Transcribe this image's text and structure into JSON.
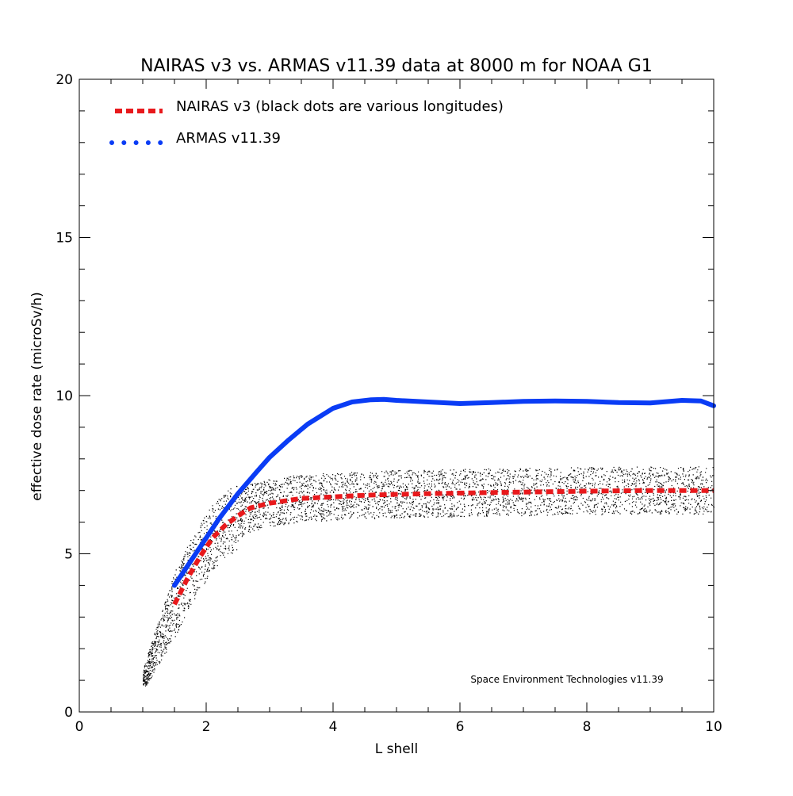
{
  "chart_data": {
    "type": "line",
    "title": "NAIRAS  v3 vs. ARMAS v11.39 data at 8000 m for NOAA G1",
    "xlabel": "L shell",
    "ylabel": "effective dose rate (microSv/h)",
    "xlim": [
      0,
      10
    ],
    "ylim": [
      0,
      20
    ],
    "x_ticks": [
      "0",
      "2",
      "4",
      "6",
      "8",
      "10"
    ],
    "y_ticks": [
      "0",
      "5",
      "10",
      "15",
      "20"
    ],
    "grid": false,
    "legend_position": "top-left",
    "legend": [
      "NAIRAS v3 (black dots are various longitudes)",
      "ARMAS v11.39"
    ],
    "annotation": "Space Environment Technologies v11.39",
    "colors": {
      "nairas": "#e8191c",
      "armas": "#0a3cf5",
      "scatter": "#000000"
    },
    "series": [
      {
        "name": "NAIRAS v3 (black dots are various longitudes)",
        "style": "dashed-red",
        "x": [
          1.5,
          1.7,
          1.9,
          2.1,
          2.3,
          2.5,
          2.7,
          3.0,
          3.5,
          4.0,
          4.5,
          5.0,
          6.0,
          7.0,
          8.0,
          9.0,
          10.0
        ],
        "y": [
          3.4,
          4.2,
          4.9,
          5.5,
          5.9,
          6.2,
          6.45,
          6.6,
          6.75,
          6.8,
          6.85,
          6.88,
          6.92,
          6.95,
          6.98,
          7.0,
          7.0
        ]
      },
      {
        "name": "ARMAS v11.39",
        "style": "solid-blue",
        "x": [
          1.5,
          1.8,
          2.0,
          2.2,
          2.5,
          2.8,
          3.0,
          3.3,
          3.6,
          4.0,
          4.3,
          4.6,
          4.8,
          5.0,
          5.5,
          6.0,
          6.5,
          7.0,
          7.5,
          8.0,
          8.5,
          9.0,
          9.5,
          9.8,
          10.0
        ],
        "y": [
          4.0,
          4.9,
          5.5,
          6.1,
          6.9,
          7.6,
          8.05,
          8.6,
          9.1,
          9.6,
          9.8,
          9.87,
          9.88,
          9.85,
          9.8,
          9.75,
          9.78,
          9.82,
          9.83,
          9.82,
          9.78,
          9.77,
          9.85,
          9.83,
          9.68
        ]
      }
    ]
  }
}
